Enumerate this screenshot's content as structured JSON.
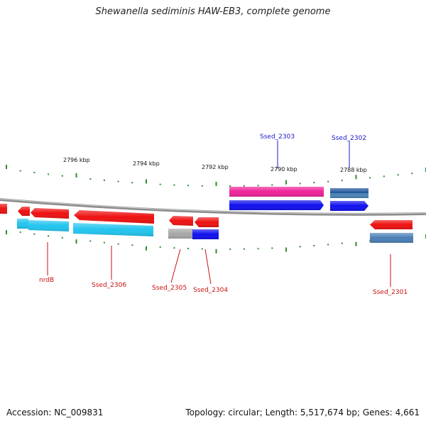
{
  "title": "Shewanella sediminis HAW-EB3, complete genome",
  "footer": {
    "accession": "Accession: NC_009831",
    "summary": "Topology: circular; Length: 5,517,674 bp; Genes: 4,661"
  },
  "colors": {
    "backbone": "#8c8c8c",
    "tick": "#2e8b2e",
    "forward_label": "#1a1acc",
    "reverse_label": "#cc1111",
    "gene_red": "#ee1111",
    "gene_blue": "#1010ee",
    "gene_magenta": "#ee2299",
    "gene_cyan": "#22c4ee",
    "gene_steel": "#4a7fb5",
    "gene_gray": "#a8a8a8"
  },
  "scale_labels": [
    "2796 kbp",
    "2794 kbp",
    "2792 kbp",
    "2790 kbp",
    "2788 kbp"
  ],
  "forward_genes": [
    {
      "label": "Ssed_2303",
      "color": "#ee2299",
      "cog_color": "#1010ee"
    },
    {
      "label": "Ssed_2302",
      "color": "#1a4f9a",
      "cog_color": "#1010ee"
    }
  ],
  "reverse_genes": [
    {
      "label": "nrdB",
      "color": "#ee1111",
      "cog_color": "#22c4ee"
    },
    {
      "label": "Ssed_2306",
      "color": "#ee1111",
      "cog_color": "#22c4ee"
    },
    {
      "label": "Ssed_2305",
      "color": "#ee1111",
      "cog_color": "#a8a8a8"
    },
    {
      "label": "Ssed_2304",
      "color": "#ee1111",
      "cog_color": "#1010ee"
    },
    {
      "label": "Ssed_2301",
      "color": "#ee1111",
      "cog_color": "#4a7fb5"
    }
  ],
  "unlabeled_reverse_genes": [
    {
      "color": "#ee1111"
    },
    {
      "color": "#ee1111",
      "cog_color": "#22c4ee"
    }
  ]
}
